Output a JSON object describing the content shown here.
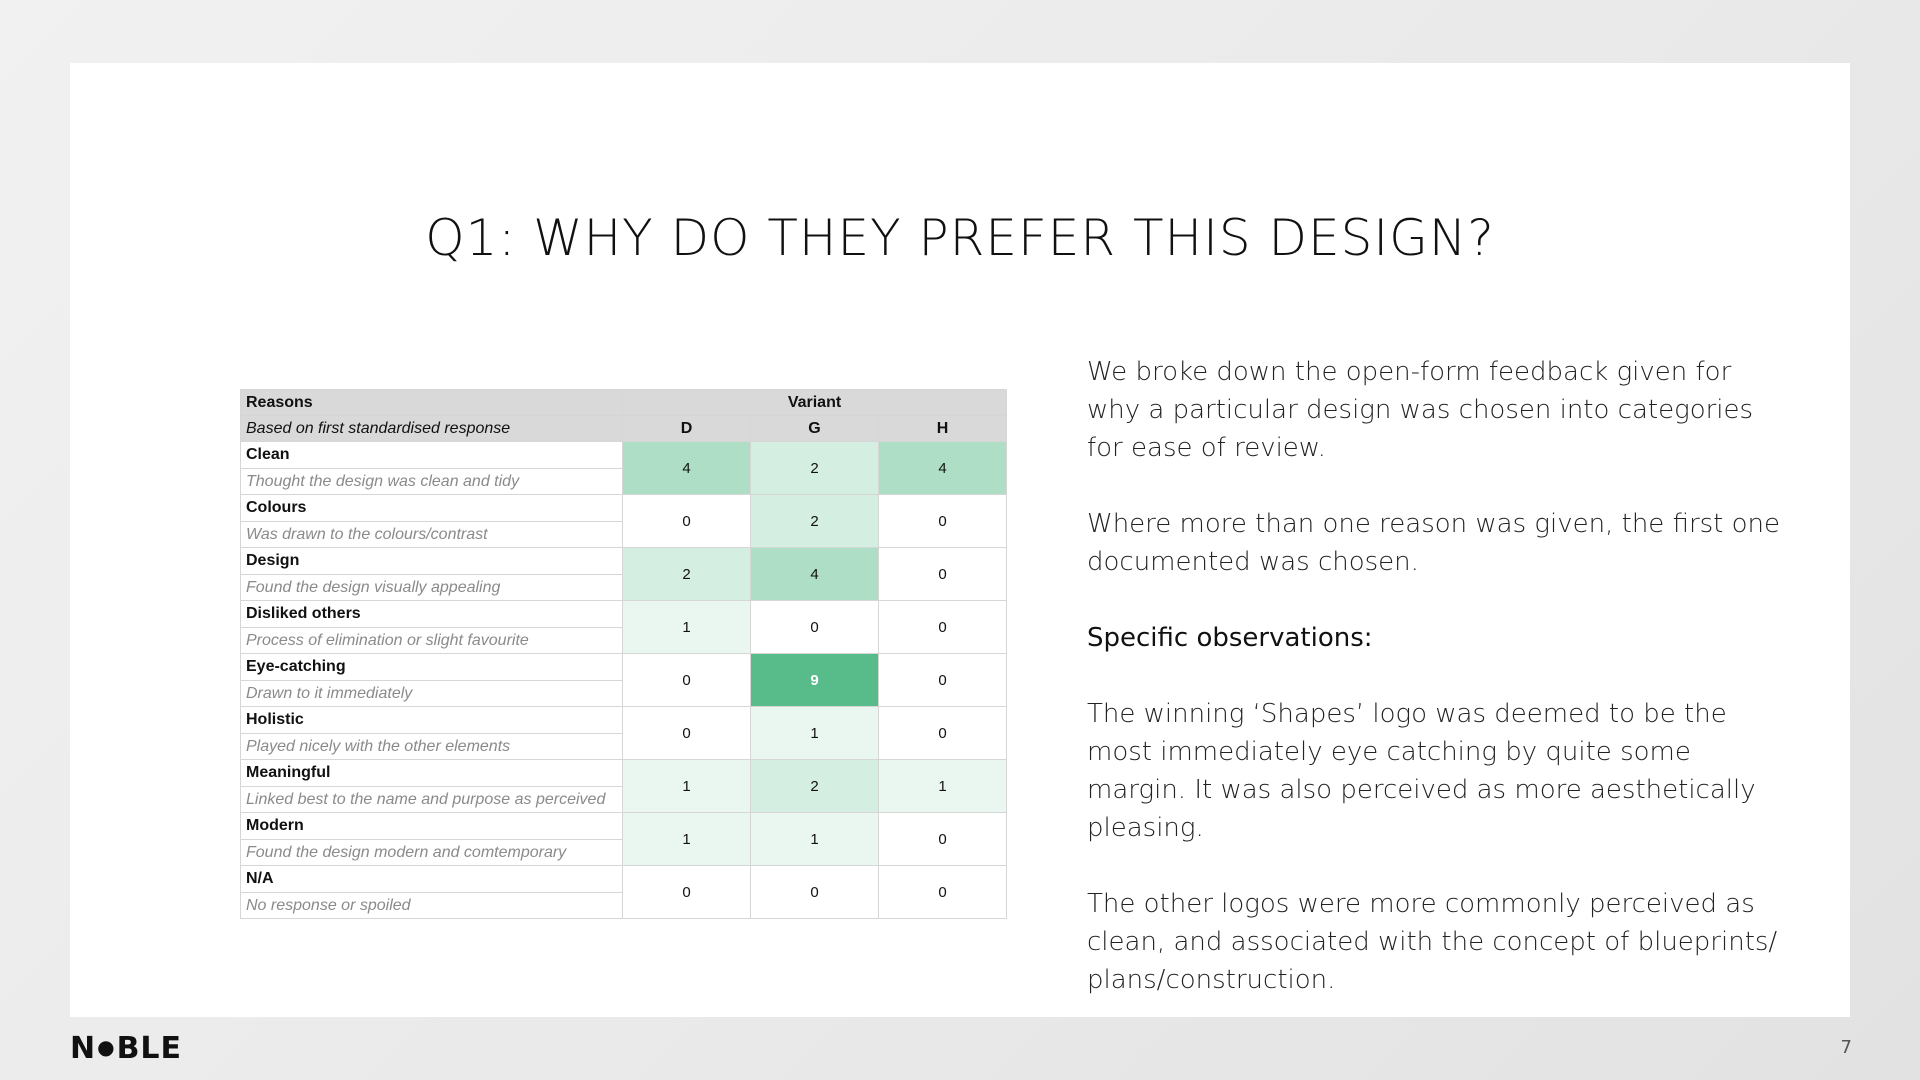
{
  "title": "Q1: WHY DO THEY PREFER THIS DESIGN?",
  "table": {
    "reasons_header": "Reasons",
    "variant_header": "Variant",
    "sub_header": "Based on first standardised response",
    "variants": [
      "D",
      "G",
      "H"
    ],
    "rows": [
      {
        "category": "Clean",
        "description": "Thought the design was clean and tidy",
        "values": [
          4,
          2,
          4
        ],
        "colors": [
          "#aedfc6",
          "#d4eee1",
          "#aedfc6"
        ]
      },
      {
        "category": "Colours",
        "description": "Was drawn to the colours/contrast",
        "values": [
          0,
          2,
          0
        ],
        "colors": [
          "#ffffff",
          "#d4eee1",
          "#ffffff"
        ]
      },
      {
        "category": "Design",
        "description": "Found the design visually appealing",
        "values": [
          2,
          4,
          0
        ],
        "colors": [
          "#d4eee1",
          "#aedfc6",
          "#ffffff"
        ]
      },
      {
        "category": "Disliked others",
        "description": "Process of elimination or slight favourite",
        "values": [
          1,
          0,
          0
        ],
        "colors": [
          "#eaf7f0",
          "#ffffff",
          "#ffffff"
        ]
      },
      {
        "category": "Eye-catching",
        "description": "Drawn to it immediately",
        "values": [
          0,
          9,
          0
        ],
        "colors": [
          "#ffffff",
          "#57bb8a",
          "#ffffff"
        ]
      },
      {
        "category": "Holistic",
        "description": "Played nicely with the other elements",
        "values": [
          0,
          1,
          0
        ],
        "colors": [
          "#ffffff",
          "#eaf7f0",
          "#ffffff"
        ]
      },
      {
        "category": "Meaningful",
        "description": "Linked best to the name and purpose as perceived",
        "values": [
          1,
          2,
          1
        ],
        "colors": [
          "#eaf7f0",
          "#d4eee1",
          "#eaf7f0"
        ]
      },
      {
        "category": "Modern",
        "description": "Found the design modern and comtemporary",
        "values": [
          1,
          1,
          0
        ],
        "colors": [
          "#eaf7f0",
          "#eaf7f0",
          "#ffffff"
        ]
      },
      {
        "category": "N/A",
        "description": "No response or spoiled",
        "values": [
          0,
          0,
          0
        ],
        "colors": [
          "#ffffff",
          "#ffffff",
          "#ffffff"
        ]
      }
    ]
  },
  "body": {
    "p1": "We broke down the open-form feedback given for why a particular design was chosen into categories for ease of review.",
    "p2": "Where more than one reason was given, the first one documented was chosen.",
    "observations_heading": "Specific observations:",
    "p3": "The winning ‘Shapes’ logo was deemed to be the most immediately eye catching by quite some margin. It was also perceived as more aesthetically pleasing.",
    "p4": "The other logos were more commonly perceived as clean, and associated with the concept of blueprints/ plans/construction."
  },
  "footer": {
    "logo_left": "N",
    "logo_dot": "●",
    "logo_right": "BLE",
    "page_number": "7"
  }
}
